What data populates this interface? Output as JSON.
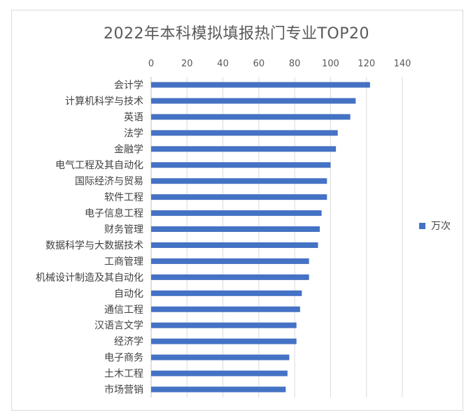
{
  "chart_data": {
    "type": "bar",
    "orientation": "horizontal",
    "title": "2022年本科模拟填报热门专业TOP20",
    "categories": [
      "会计学",
      "计算机科学与技术",
      "英语",
      "法学",
      "金融学",
      "电气工程及其自动化",
      "国际经济与贸易",
      "软件工程",
      "电子信息工程",
      "财务管理",
      "数据科学与大数据技术",
      "工商管理",
      "机械设计制造及其自动化",
      "自动化",
      "通信工程",
      "汉语言文学",
      "经济学",
      "电子商务",
      "土木工程",
      "市场营销"
    ],
    "series": [
      {
        "name": "万次",
        "values": [
          122,
          114,
          111,
          104,
          103,
          100,
          98,
          98,
          95,
          94,
          93,
          88,
          88,
          84,
          83,
          81,
          81,
          77,
          76,
          75
        ]
      }
    ],
    "xlim": [
      0,
      140
    ],
    "xticks": [
      "0",
      "20",
      "40",
      "60",
      "80",
      "100",
      "120",
      "140"
    ],
    "x_axis_position": "top",
    "grid": true,
    "legend_position": "right",
    "bar_color": "#4472c4"
  }
}
